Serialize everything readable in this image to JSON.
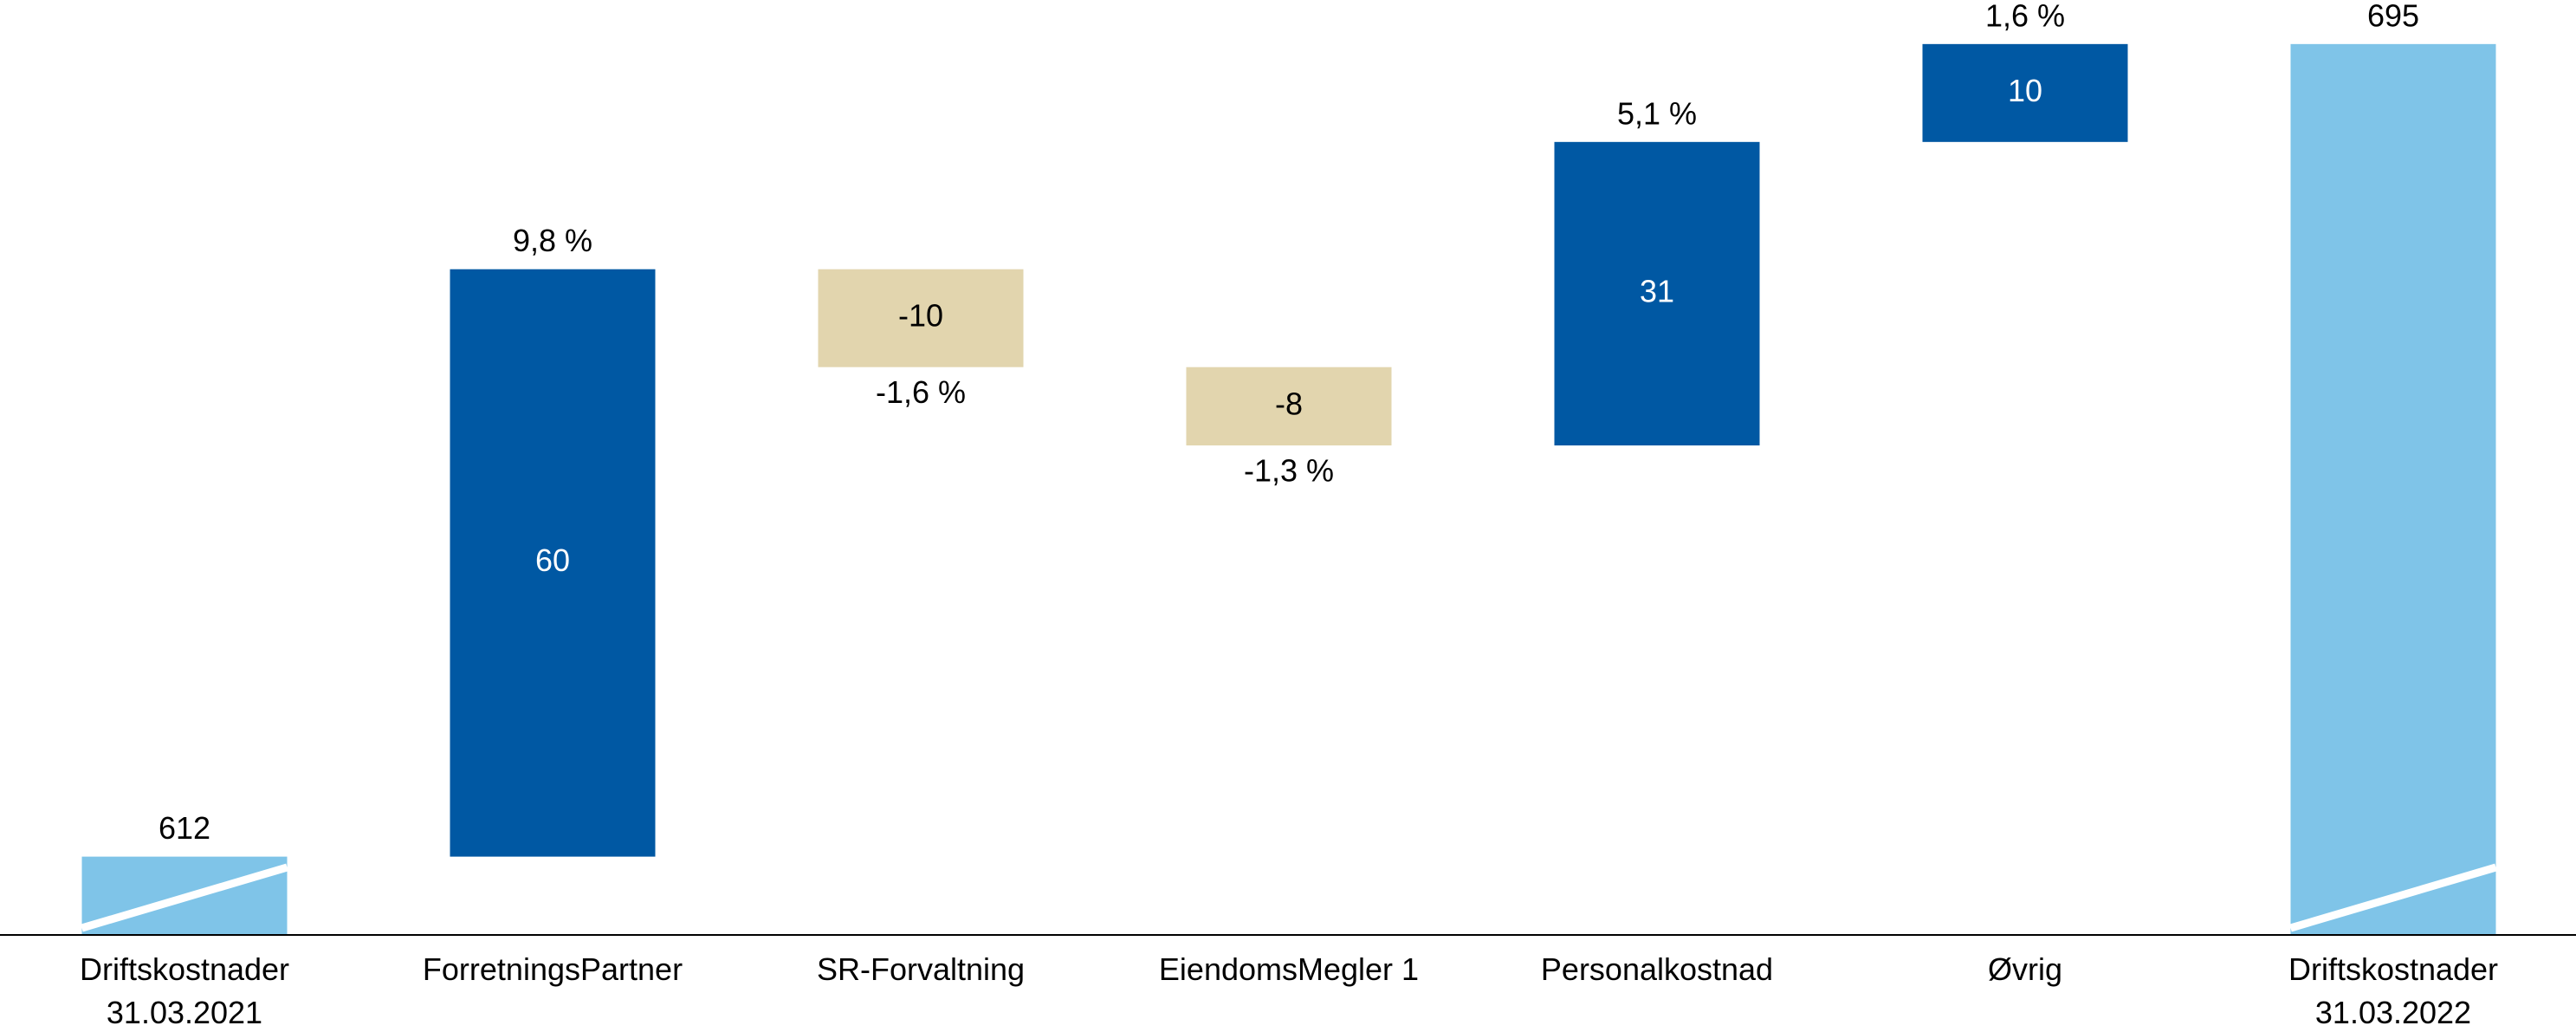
{
  "chart_data": {
    "type": "waterfall",
    "categories": [
      "Driftskostnader\n31.03.2021",
      "ForretningsPartner",
      "SR-Forvaltning",
      "EiendomsMegler 1",
      "Personalkostnad",
      "Øvrig",
      "Driftskostnader\n31.03.2022"
    ],
    "values": [
      612,
      60,
      -10,
      -8,
      31,
      10,
      695
    ],
    "measures": [
      "total",
      "relative",
      "relative",
      "relative",
      "relative",
      "relative",
      "total"
    ],
    "change_labels": [
      null,
      "9,8 %",
      "-1,6 %",
      "-1,3 %",
      "5,1 %",
      "1,6 %",
      null
    ],
    "colors": {
      "total": "#7fc4e8",
      "increase": "#0058a3",
      "decrease": "#e2d5ae"
    },
    "ylim": [
      604,
      699.5
    ],
    "axis_break": true
  }
}
